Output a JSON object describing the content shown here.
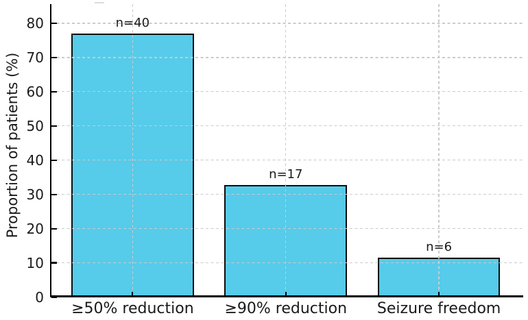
{
  "figure": {
    "background": "#ffffff"
  },
  "chart_data": {
    "type": "bar",
    "title": "",
    "categories": [
      "≥50% reduction",
      "≥90% reduction",
      "Seizure freedom"
    ],
    "values": [
      76.9,
      32.7,
      11.5
    ],
    "bar_labels": [
      "n=40",
      "n=17",
      "n=6"
    ],
    "counts": [
      40,
      17,
      6
    ],
    "xlabel": "",
    "ylabel": "Proportion of patients (%)",
    "ylim": [
      0,
      85.6
    ],
    "yticks": [
      0,
      10,
      20,
      30,
      40,
      50,
      60,
      70,
      80
    ],
    "xlim": [
      -0.53,
      2.55
    ],
    "bar_width": 0.8,
    "grid": "both-axes-dashed-over-bars",
    "legend": "none",
    "colors": {
      "bar_fill": "#56CBEA",
      "bar_edge": "#0d0d0d",
      "grid": "#cbcbcb",
      "axis": "#000000",
      "text": "#1a1a1a",
      "background": "#ffffff"
    }
  }
}
